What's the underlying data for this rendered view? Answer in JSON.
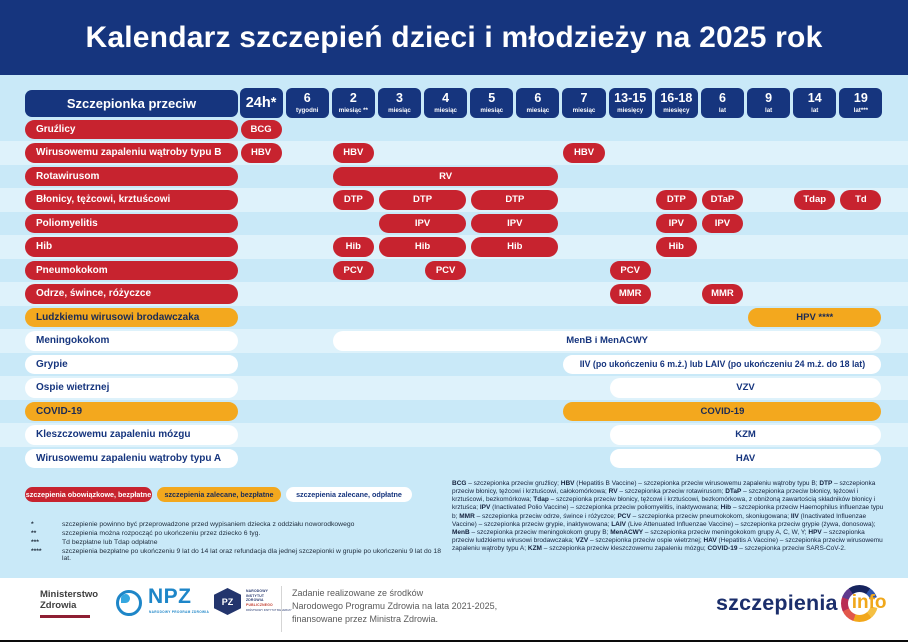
{
  "title": "Kalendarz szczepień dzieci i młodzieży na 2025 rok",
  "colors": {
    "navy": "#16357e",
    "red": "#c7232f",
    "orange": "#f3a81e",
    "panel_background": "#c9e9f8",
    "white": "#ffffff"
  },
  "table": {
    "corner_label": "Szczepionka przeciw",
    "columns": [
      {
        "value": "24h*",
        "unit": ""
      },
      {
        "value": "6",
        "unit": "tygodni"
      },
      {
        "value": "2",
        "unit": "miesiąc **"
      },
      {
        "value": "3",
        "unit": "miesiąc"
      },
      {
        "value": "4",
        "unit": "miesiąc"
      },
      {
        "value": "5",
        "unit": "miesiąc"
      },
      {
        "value": "6",
        "unit": "miesiąc"
      },
      {
        "value": "7",
        "unit": "miesiąc"
      },
      {
        "value": "13-15",
        "unit": "miesięcy"
      },
      {
        "value": "16-18",
        "unit": "miesięcy"
      },
      {
        "value": "6",
        "unit": "lat"
      },
      {
        "value": "9",
        "unit": "lat"
      },
      {
        "value": "14",
        "unit": "lat"
      },
      {
        "value": "19",
        "unit": "lat***"
      }
    ],
    "rows": [
      {
        "label": "Gruźlicy",
        "style": "red",
        "bars": [
          {
            "text": "BCG",
            "start": 1,
            "span": 1,
            "style": "red"
          }
        ]
      },
      {
        "label": "Wirusowemu zapaleniu wątroby typu B",
        "style": "red",
        "bars": [
          {
            "text": "HBV",
            "start": 1,
            "span": 1,
            "style": "red"
          },
          {
            "text": "HBV",
            "start": 3,
            "span": 1,
            "style": "red"
          },
          {
            "text": "HBV",
            "start": 8,
            "span": 1,
            "style": "red"
          }
        ]
      },
      {
        "label": "Rotawirusom",
        "style": "red",
        "bars": [
          {
            "text": "RV",
            "start": 3,
            "span": 5,
            "style": "red"
          }
        ]
      },
      {
        "label": "Błonicy, tężcowi, krztuścowi",
        "style": "red",
        "bars": [
          {
            "text": "DTP",
            "start": 3,
            "span": 1,
            "style": "red"
          },
          {
            "text": "DTP",
            "start": 4,
            "span": 2,
            "style": "red"
          },
          {
            "text": "DTP",
            "start": 6,
            "span": 2,
            "style": "red"
          },
          {
            "text": "DTP",
            "start": 10,
            "span": 1,
            "style": "red"
          },
          {
            "text": "DTaP",
            "start": 11,
            "span": 1,
            "style": "red"
          },
          {
            "text": "Tdap",
            "start": 13,
            "span": 1,
            "style": "red"
          },
          {
            "text": "Td",
            "start": 14,
            "span": 1,
            "style": "red"
          }
        ]
      },
      {
        "label": "Poliomyelitis",
        "style": "red",
        "bars": [
          {
            "text": "IPV",
            "start": 4,
            "span": 2,
            "style": "red"
          },
          {
            "text": "IPV",
            "start": 6,
            "span": 2,
            "style": "red"
          },
          {
            "text": "IPV",
            "start": 10,
            "span": 1,
            "style": "red"
          },
          {
            "text": "IPV",
            "start": 11,
            "span": 1,
            "style": "red"
          }
        ]
      },
      {
        "label": "Hib",
        "style": "red",
        "bars": [
          {
            "text": "Hib",
            "start": 3,
            "span": 1,
            "style": "red"
          },
          {
            "text": "Hib",
            "start": 4,
            "span": 2,
            "style": "red"
          },
          {
            "text": "Hib",
            "start": 6,
            "span": 2,
            "style": "red"
          },
          {
            "text": "Hib",
            "start": 10,
            "span": 1,
            "style": "red"
          }
        ]
      },
      {
        "label": "Pneumokokom",
        "style": "red",
        "bars": [
          {
            "text": "PCV",
            "start": 3,
            "span": 1,
            "style": "red"
          },
          {
            "text": "PCV",
            "start": 5,
            "span": 1,
            "style": "red"
          },
          {
            "text": "PCV",
            "start": 9,
            "span": 1,
            "style": "red"
          }
        ]
      },
      {
        "label": "Odrze, śwince, różyczce",
        "style": "red",
        "bars": [
          {
            "text": "MMR",
            "start": 9,
            "span": 1,
            "style": "red"
          },
          {
            "text": "MMR",
            "start": 11,
            "span": 1,
            "style": "red"
          }
        ]
      },
      {
        "label": "Ludzkiemu wirusowi brodawczaka",
        "style": "orange",
        "bars": [
          {
            "text": "HPV ****",
            "start": 12,
            "span": 3,
            "style": "orange"
          }
        ]
      },
      {
        "label": "Meningokokom",
        "style": "white",
        "bars": [
          {
            "text": "MenB i MenACWY",
            "start": 3,
            "span": 12,
            "style": "white"
          }
        ]
      },
      {
        "label": "Grypie",
        "style": "white",
        "bars": [
          {
            "text": "IIV (po ukończeniu 6 m.ż.) lub LAIV (po ukończeniu 24 m.ż. do 18 lat)",
            "start": 8,
            "span": 7,
            "style": "white",
            "small": true
          }
        ]
      },
      {
        "label": "Ospie wietrznej",
        "style": "white",
        "bars": [
          {
            "text": "VZV",
            "start": 9,
            "span": 6,
            "style": "white"
          }
        ]
      },
      {
        "label": "COVID-19",
        "style": "orange",
        "bars": [
          {
            "text": "COVID-19",
            "start": 8,
            "span": 7,
            "style": "orange"
          }
        ]
      },
      {
        "label": "Kleszczowemu zapaleniu mózgu",
        "style": "white",
        "bars": [
          {
            "text": "KZM",
            "start": 9,
            "span": 6,
            "style": "white"
          }
        ]
      },
      {
        "label": "Wirusowemu zapaleniu wątroby typu A",
        "style": "white",
        "bars": [
          {
            "text": "HAV",
            "start": 9,
            "span": 6,
            "style": "white"
          }
        ]
      }
    ]
  },
  "legend": [
    {
      "label": "szczepienia obowiązkowe, bezpłatne",
      "style": "red"
    },
    {
      "label": "szczepienia zalecane, bezpłatne",
      "style": "orange"
    },
    {
      "label": "szczepienia zalecane, odpłatne",
      "style": "white"
    }
  ],
  "footnotes": [
    {
      "mark": "*",
      "text": "szczepienie powinno być przeprowadzone przed wypisaniem dziecka z oddziału noworodkowego"
    },
    {
      "mark": "**",
      "text": "szczepienia można rozpocząć po ukończeniu przez dziecko 6 tyg."
    },
    {
      "mark": "***",
      "text": "Td bezpłatne lub Tdap odpłatne"
    },
    {
      "mark": "****",
      "text": "szczepienia bezpłatne po ukończeniu 9 lat do 14 lat oraz refundacja dla jednej szczepionki w grupie po ukończeniu 9 lat do 18 lat."
    }
  ],
  "abbreviations": [
    {
      "term": "BCG",
      "paren": "",
      "desc": "szczepionka przeciw gruźlicy"
    },
    {
      "term": "HBV",
      "paren": " (Hepatitis B Vaccine)",
      "desc": "szczepionka przeciw wirusowemu zapaleniu wątroby typu B"
    },
    {
      "term": "DTP",
      "paren": "",
      "desc": "szczepionka przeciw błonicy, tężcowi i krztuścowi, całokomórkowa"
    },
    {
      "term": "RV",
      "paren": "",
      "desc": "szczepionka przeciw rotawirusom"
    },
    {
      "term": "DTaP",
      "paren": "",
      "desc": "szczepionka przeciw błonicy, tężcowi i krztuścowi, bezkomórkowa"
    },
    {
      "term": "Tdap",
      "paren": "",
      "desc": "szczepionka przeciw błonicy, tężcowi i krztuścowi, bezkomórkowa, z obniżoną zawartością składników błonicy i krztuśca"
    },
    {
      "term": "IPV",
      "paren": " (Inactivated Polio Vaccine)",
      "desc": "szczepionka przeciw poliomyelitis, inaktywowana"
    },
    {
      "term": "Hib",
      "paren": "",
      "desc": "szczepionka przeciw Haemophilus influenzae typu b"
    },
    {
      "term": "MMR",
      "paren": "",
      "desc": "szczepionka przeciw odrze, śwince i różyczce"
    },
    {
      "term": "PCV",
      "paren": "",
      "desc": "szczepionka przeciw pneumokokom, skoniugowana"
    },
    {
      "term": "IIV",
      "paren": " (Inactivated Influenzae Vaccine)",
      "desc": "szczepionka przeciw grypie, inaktywowana"
    },
    {
      "term": "LAIV",
      "paren": " (Live Attenuated Influenzae Vaccine)",
      "desc": "szczepionka przeciw grypie (żywa, donosowa)"
    },
    {
      "term": "MenB",
      "paren": "",
      "desc": "szczepionka przeciw meningokokom grupy B"
    },
    {
      "term": "MenACWY",
      "paren": "",
      "desc": "szczepionka przeciw meningokokom grupy A, C, W, Y"
    },
    {
      "term": "HPV",
      "paren": "",
      "desc": "szczepionka przeciw ludzkiemu wirusowi brodawczaka"
    },
    {
      "term": "VZV",
      "paren": "",
      "desc": "szczepionka przeciw ospie wietrznej"
    },
    {
      "term": "HAV",
      "paren": " (Hepatitis A Vaccine)",
      "desc": "szczepionka przeciw wirusowemu zapaleniu wątroby typu A"
    },
    {
      "term": "KZM",
      "paren": "",
      "desc": "szczepionka przeciw kleszczowemu zapaleniu mózgu"
    },
    {
      "term": "COVID-19",
      "paren": "",
      "desc": "szczepionka przeciw SARS-CoV-2"
    }
  ],
  "footer": {
    "ministry": {
      "line1": "Ministerstwo",
      "line2": "Zdrowia"
    },
    "npz": {
      "acronym": "NPZ",
      "subtitle": "NARODOWY PROGRAM ZDROWIA"
    },
    "pzh": {
      "monogram": "PZ",
      "lines": [
        "NARODOWY",
        "INSTYTUT",
        "ZDROWIA",
        "PUBLICZNEGO"
      ],
      "subline": "PAŃSTWOWY INSTYTUT BADAWCZY"
    },
    "funding": [
      "Zadanie realizowane ze środków",
      "Narodowego Programu Zdrowia na lata 2021-2025,",
      "finansowane przez Ministra Zdrowia."
    ],
    "brand": {
      "name": "szczepienia",
      "suffix": "info"
    }
  }
}
